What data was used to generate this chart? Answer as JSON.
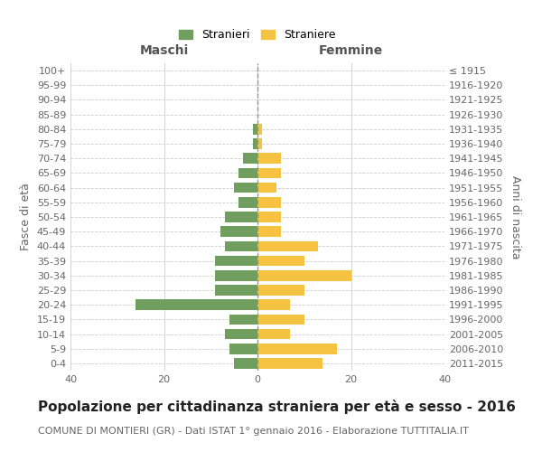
{
  "age_groups": [
    "0-4",
    "5-9",
    "10-14",
    "15-19",
    "20-24",
    "25-29",
    "30-34",
    "35-39",
    "40-44",
    "45-49",
    "50-54",
    "55-59",
    "60-64",
    "65-69",
    "70-74",
    "75-79",
    "80-84",
    "85-89",
    "90-94",
    "95-99",
    "100+"
  ],
  "birth_years": [
    "2011-2015",
    "2006-2010",
    "2001-2005",
    "1996-2000",
    "1991-1995",
    "1986-1990",
    "1981-1985",
    "1976-1980",
    "1971-1975",
    "1966-1970",
    "1961-1965",
    "1956-1960",
    "1951-1955",
    "1946-1950",
    "1941-1945",
    "1936-1940",
    "1931-1935",
    "1926-1930",
    "1921-1925",
    "1916-1920",
    "≤ 1915"
  ],
  "maschi": [
    5,
    6,
    7,
    6,
    26,
    9,
    9,
    9,
    7,
    8,
    7,
    4,
    5,
    4,
    3,
    1,
    1,
    0,
    0,
    0,
    0
  ],
  "femmine": [
    14,
    17,
    7,
    10,
    7,
    10,
    20,
    10,
    13,
    5,
    5,
    5,
    4,
    5,
    5,
    1,
    1,
    0,
    0,
    0,
    0
  ],
  "color_maschi": "#6f9e5e",
  "color_femmine": "#f5c242",
  "title": "Popolazione per cittadinanza straniera per età e sesso - 2016",
  "subtitle": "COMUNE DI MONTIERI (GR) - Dati ISTAT 1° gennaio 2016 - Elaborazione TUTTITALIA.IT",
  "ylabel_left": "Fasce di età",
  "ylabel_right": "Anni di nascita",
  "xlabel_left": "Maschi",
  "xlabel_right": "Femmine",
  "legend_stranieri": "Stranieri",
  "legend_straniere": "Straniere",
  "xlim": 40,
  "background_color": "#ffffff",
  "grid_color": "#cccccc",
  "title_fontsize": 11,
  "subtitle_fontsize": 8,
  "label_fontsize": 9,
  "tick_fontsize": 8
}
